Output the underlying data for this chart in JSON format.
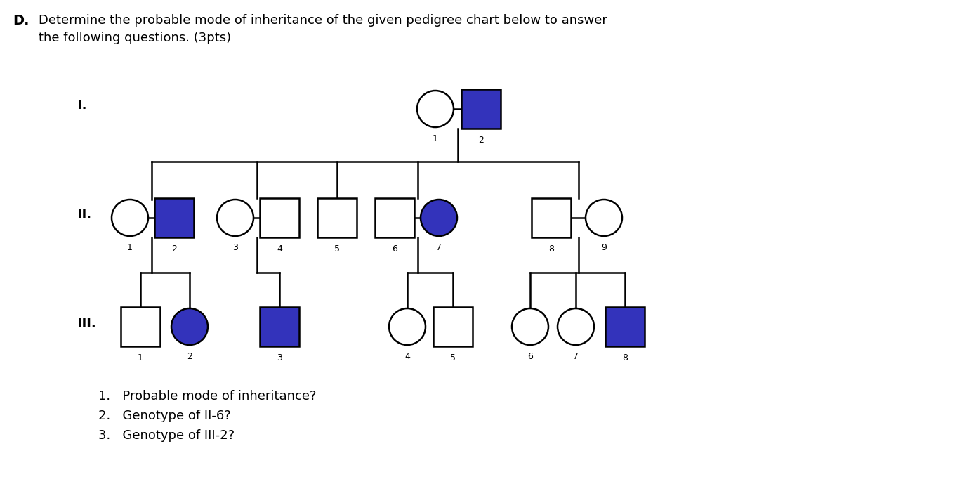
{
  "bg_color": "#ffffff",
  "affected_color": "#3333bb",
  "unaffected_color": "#ffffff",
  "line_color": "#000000",
  "title_D": "D.",
  "title_line1": "Determine the probable mode of inheritance of the given pedigree chart below to answer",
  "title_line2": "the following questions. (3pts)",
  "questions": [
    "1.   Probable mode of inheritance?",
    "2.   Genotype of II-6?",
    "3.   Genotype of III-2?"
  ],
  "gen_labels": [
    "I.",
    "II.",
    "III."
  ],
  "fig_width": 13.8,
  "fig_height": 7.16,
  "dpi": 100
}
